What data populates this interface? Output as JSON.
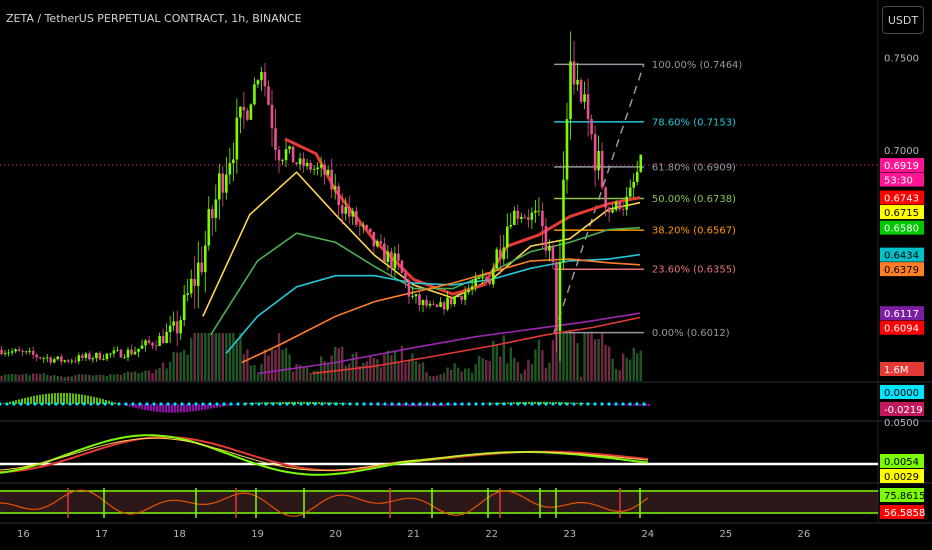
{
  "header": {
    "title": "ZETA / TetherUS PERPETUAL CONTRACT, 1h, BINANCE",
    "currency_button": "USDT"
  },
  "colors": {
    "up": "#7cfc00",
    "down": "#e8518f",
    "ema_fast": "#ffd54f",
    "ema_slow": "#4caf50",
    "ema_teal": "#26c6da",
    "ema_orange": "#ff7f27",
    "ema_purple": "#9c27b0",
    "ema_red": "#e53935",
    "fib_neutral": "#9598a1"
  },
  "chart_data": {
    "type": "candlestick",
    "x_axis": {
      "tick_labels": [
        "16",
        "17",
        "18",
        "19",
        "20",
        "21",
        "22",
        "23",
        "24",
        "25",
        "26"
      ],
      "range": [
        15.7,
        26.95
      ]
    },
    "y_axis": {
      "tick_labels": [
        "0.7500",
        "0.7000"
      ],
      "range": [
        0.575,
        0.765
      ]
    },
    "price_path": [
      [
        15.7,
        0.592
      ],
      [
        16.5,
        0.586
      ],
      [
        17.4,
        0.591
      ],
      [
        17.95,
        0.602
      ],
      [
        18.3,
        0.643
      ],
      [
        18.55,
        0.688
      ],
      [
        18.9,
        0.728
      ],
      [
        19.05,
        0.745
      ],
      [
        19.25,
        0.703
      ],
      [
        19.5,
        0.693
      ],
      [
        19.85,
        0.688
      ],
      [
        20.15,
        0.666
      ],
      [
        20.55,
        0.646
      ],
      [
        20.8,
        0.637
      ],
      [
        21.0,
        0.618
      ],
      [
        21.3,
        0.614
      ],
      [
        21.6,
        0.622
      ],
      [
        21.95,
        0.63
      ],
      [
        22.25,
        0.666
      ],
      [
        22.55,
        0.664
      ],
      [
        22.75,
        0.643
      ],
      [
        22.85,
        0.605
      ],
      [
        23.0,
        0.748
      ],
      [
        23.25,
        0.712
      ],
      [
        23.5,
        0.668
      ],
      [
        23.75,
        0.672
      ],
      [
        23.9,
        0.6919
      ]
    ],
    "moving_averages": [
      {
        "color_key": "ema_fast",
        "points": [
          [
            18.3,
            0.61
          ],
          [
            18.9,
            0.665
          ],
          [
            19.5,
            0.688
          ],
          [
            20.0,
            0.665
          ],
          [
            20.5,
            0.643
          ],
          [
            21.0,
            0.627
          ],
          [
            21.5,
            0.62
          ],
          [
            22.0,
            0.63
          ],
          [
            22.5,
            0.648
          ],
          [
            23.0,
            0.652
          ],
          [
            23.5,
            0.668
          ],
          [
            23.9,
            0.6715
          ]
        ]
      },
      {
        "color_key": "ema_red",
        "points": [
          [
            19.35,
            0.706
          ],
          [
            19.75,
            0.698
          ],
          [
            20.0,
            0.678
          ],
          [
            20.5,
            0.651
          ],
          [
            21.0,
            0.63
          ],
          [
            21.5,
            0.622
          ],
          [
            21.9,
            0.627
          ],
          [
            22.2,
            0.648
          ],
          [
            22.6,
            0.654
          ],
          [
            23.0,
            0.664
          ],
          [
            23.5,
            0.671
          ],
          [
            23.9,
            0.6743
          ]
        ]
      },
      {
        "color_key": "ema_slow",
        "points": [
          [
            18.4,
            0.6
          ],
          [
            19.0,
            0.64
          ],
          [
            19.5,
            0.655
          ],
          [
            20.0,
            0.65
          ],
          [
            20.5,
            0.637
          ],
          [
            21.0,
            0.625
          ],
          [
            21.5,
            0.625
          ],
          [
            22.0,
            0.634
          ],
          [
            22.5,
            0.645
          ],
          [
            23.0,
            0.65
          ],
          [
            23.5,
            0.657
          ],
          [
            23.9,
            0.658
          ]
        ]
      },
      {
        "color_key": "ema_teal",
        "points": [
          [
            18.6,
            0.59
          ],
          [
            19.0,
            0.61
          ],
          [
            19.5,
            0.626
          ],
          [
            20.0,
            0.632
          ],
          [
            20.5,
            0.632
          ],
          [
            21.0,
            0.628
          ],
          [
            21.5,
            0.627
          ],
          [
            22.0,
            0.63
          ],
          [
            22.5,
            0.636
          ],
          [
            23.0,
            0.64
          ],
          [
            23.5,
            0.641
          ],
          [
            23.9,
            0.6434
          ]
        ]
      },
      {
        "color_key": "ema_orange",
        "points": [
          [
            18.8,
            0.585
          ],
          [
            19.3,
            0.595
          ],
          [
            20.0,
            0.61
          ],
          [
            20.5,
            0.618
          ],
          [
            21.0,
            0.623
          ],
          [
            21.5,
            0.628
          ],
          [
            22.0,
            0.634
          ],
          [
            22.5,
            0.64
          ],
          [
            23.0,
            0.641
          ],
          [
            23.5,
            0.639
          ],
          [
            23.9,
            0.6379
          ]
        ]
      },
      {
        "color_key": "ema_purple",
        "points": [
          [
            19.0,
            0.579
          ],
          [
            20.0,
            0.585
          ],
          [
            21.0,
            0.593
          ],
          [
            21.8,
            0.599
          ],
          [
            22.5,
            0.603
          ],
          [
            23.2,
            0.607
          ],
          [
            23.9,
            0.6117
          ]
        ]
      },
      {
        "color_key": "ema_red",
        "points": [
          [
            19.7,
            0.579
          ],
          [
            20.5,
            0.583
          ],
          [
            21.2,
            0.588
          ],
          [
            22.0,
            0.594
          ],
          [
            22.7,
            0.6
          ],
          [
            23.3,
            0.604
          ],
          [
            23.9,
            0.6094
          ]
        ]
      }
    ],
    "fibonacci": {
      "x_start": 22.8,
      "x_end": 23.95,
      "levels": [
        {
          "label": "100.00% (0.7464)",
          "price": 0.7464,
          "color": "#9598a1"
        },
        {
          "label": "78.60% (0.7153)",
          "price": 0.7153,
          "color": "#26c6da"
        },
        {
          "label": "61.80% (0.6909)",
          "price": 0.6909,
          "color": "#9598a1"
        },
        {
          "label": "50.00% (0.6738)",
          "price": 0.6738,
          "color": "#8bc34a"
        },
        {
          "label": "38.20% (0.6567)",
          "price": 0.6567,
          "color": "#ff9800"
        },
        {
          "label": "23.60% (0.6355)",
          "price": 0.6355,
          "color": "#e57373"
        },
        {
          "label": "0.00% (0.6012)",
          "price": 0.6012,
          "color": "#9598a1"
        }
      ]
    },
    "last_price_line": 0.6919,
    "price_badges": [
      {
        "text": "0.6919",
        "price": 0.6919,
        "bg": "#ff1493",
        "fg": "#ffffff"
      },
      {
        "text": "53:30",
        "price": 0.6879,
        "bg": "#ff1493",
        "fg": "#ffffff"
      },
      {
        "text": "0.6743",
        "price": 0.6743,
        "bg": "#ff0000",
        "fg": "#ffffff"
      },
      {
        "text": "0.6715",
        "price": 0.6715,
        "bg": "#ffff00",
        "fg": "#000000"
      },
      {
        "text": "0.6580",
        "price": 0.658,
        "bg": "#00c800",
        "fg": "#ffffff"
      },
      {
        "text": "0.6434",
        "price": 0.6434,
        "bg": "#00c0c8",
        "fg": "#000000"
      },
      {
        "text": "0.6379",
        "price": 0.6379,
        "bg": "#ff7f27",
        "fg": "#000000"
      },
      {
        "text": "0.6117",
        "price": 0.6117,
        "bg": "#7b1fa2",
        "fg": "#ffffff"
      },
      {
        "text": "0.6094",
        "price": 0.6094,
        "bg": "#ff0000",
        "fg": "#ffffff"
      }
    ],
    "volume": {
      "badge": "1.6M",
      "badge_color": "#e53935"
    },
    "macd_pane": {
      "badges": [
        {
          "text": "0.0000",
          "bg": "#00e5ff",
          "fg": "#000000"
        },
        {
          "text": "-0.0219",
          "bg": "#c2185b",
          "fg": "#ffffff"
        }
      ]
    },
    "oscillator_pane": {
      "scale_label": "0.0500",
      "badges": [
        {
          "text": "0.0054",
          "bg": "#7cfc00",
          "fg": "#000000"
        },
        {
          "text": "0.0029",
          "bg": "#ffff00",
          "fg": "#000000"
        }
      ]
    },
    "rsi_pane": {
      "badges": [
        {
          "text": "75.8615",
          "bg": "#7cfc00",
          "fg": "#000000"
        },
        {
          "text": "56.5858",
          "bg": "#ff0000",
          "fg": "#ffffff"
        }
      ]
    }
  }
}
